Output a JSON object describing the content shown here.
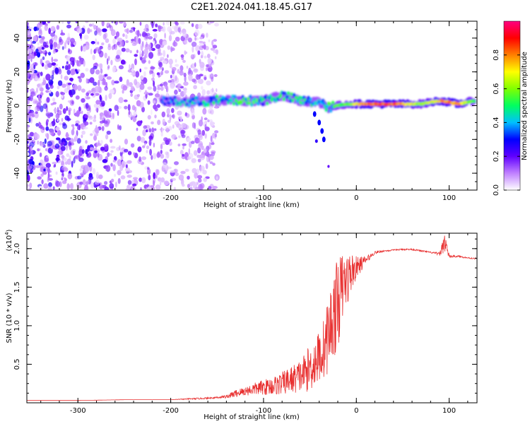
{
  "title": "C2E1.2024.041.18.45.G17",
  "chart_data": [
    {
      "type": "heatmap",
      "xlabel": "Height of straight line (km)",
      "ylabel": "Frequency (Hz)",
      "xlim": [
        -355,
        130
      ],
      "ylim": [
        -50,
        50
      ],
      "x_ticks": [
        -300,
        -200,
        -100,
        0,
        100
      ],
      "y_ticks": [
        -40,
        -20,
        0,
        20,
        40
      ],
      "colorbar": {
        "label": "Normalized spectral amplitude",
        "range": [
          0,
          1
        ],
        "ticks": [
          0.0,
          0.2,
          0.4,
          0.6,
          0.8
        ],
        "colors": [
          "#ffffff",
          "#c080ff",
          "#6000ff",
          "#0000ff",
          "#00c0ff",
          "#00ff60",
          "#80ff00",
          "#ffff00",
          "#ff8000",
          "#ff0000",
          "#ff0080"
        ]
      },
      "noise_region": {
        "x_range": [
          -355,
          -150
        ],
        "freq_range": [
          -50,
          50
        ],
        "amplitude_range": [
          0.05,
          0.3
        ]
      },
      "signal_band": [
        {
          "x": -210,
          "freq": 3,
          "amplitude": 0.35
        },
        {
          "x": -180,
          "freq": 2,
          "amplitude": 0.4
        },
        {
          "x": -150,
          "freq": 3,
          "amplitude": 0.45
        },
        {
          "x": -120,
          "freq": 3,
          "amplitude": 0.5
        },
        {
          "x": -100,
          "freq": 3,
          "amplitude": 0.5
        },
        {
          "x": -80,
          "freq": 6,
          "amplitude": 0.45
        },
        {
          "x": -60,
          "freq": 3,
          "amplitude": 0.5
        },
        {
          "x": -40,
          "freq": 2,
          "amplitude": 0.45
        },
        {
          "x": -30,
          "freq": -1,
          "amplitude": 0.55
        },
        {
          "x": -10,
          "freq": 1,
          "amplitude": 0.6
        },
        {
          "x": 10,
          "freq": 1,
          "amplitude": 0.85
        },
        {
          "x": 40,
          "freq": 1,
          "amplitude": 0.9
        },
        {
          "x": 70,
          "freq": 1,
          "amplitude": 0.6
        },
        {
          "x": 90,
          "freq": 3,
          "amplitude": 0.8
        },
        {
          "x": 110,
          "freq": 1,
          "amplitude": 0.85
        },
        {
          "x": 128,
          "freq": 3,
          "amplitude": 0.5
        }
      ],
      "branch": [
        {
          "x": -45,
          "freq": -5
        },
        {
          "x": -40,
          "freq": -10
        },
        {
          "x": -37,
          "freq": -15
        },
        {
          "x": -35,
          "freq": -20
        }
      ]
    },
    {
      "type": "line",
      "xlabel": "Height of straight line (km)",
      "ylabel": "SNR (10 * v/v)",
      "y_multiplier": "(x10",
      "y_multiplier_exp": "4",
      "y_multiplier_close": ")",
      "xlim": [
        -355,
        130
      ],
      "ylim": [
        0,
        2.2
      ],
      "x_ticks": [
        -300,
        -200,
        -100,
        0,
        100
      ],
      "y_ticks": [
        0.5,
        1.0,
        1.5,
        2.0
      ],
      "y_tick_labels": [
        "0.5",
        "1.0",
        "1.5",
        "2.0"
      ],
      "color": "#e83030",
      "x": [
        -355,
        -300,
        -250,
        -200,
        -180,
        -160,
        -140,
        -130,
        -120,
        -110,
        -100,
        -90,
        -80,
        -70,
        -60,
        -50,
        -40,
        -35,
        -30,
        -25,
        -20,
        -15,
        -10,
        -5,
        0,
        10,
        20,
        30,
        40,
        50,
        60,
        70,
        80,
        90,
        95,
        100,
        110,
        120,
        130
      ],
      "y": [
        0.03,
        0.03,
        0.04,
        0.04,
        0.05,
        0.06,
        0.08,
        0.12,
        0.15,
        0.18,
        0.2,
        0.22,
        0.25,
        0.3,
        0.35,
        0.45,
        0.6,
        0.7,
        0.9,
        1.1,
        1.3,
        1.5,
        1.6,
        1.7,
        1.75,
        1.85,
        1.95,
        1.97,
        1.98,
        1.99,
        1.99,
        1.97,
        1.95,
        1.93,
        2.1,
        1.9,
        1.9,
        1.88,
        1.87
      ],
      "noise_amplitude": [
        0,
        0,
        0,
        0,
        0.01,
        0.01,
        0.02,
        0.05,
        0.06,
        0.08,
        0.1,
        0.12,
        0.15,
        0.18,
        0.22,
        0.3,
        0.35,
        0.4,
        0.5,
        0.55,
        0.6,
        0.45,
        0.35,
        0.25,
        0.15,
        0.05,
        0.02,
        0.01,
        0.01,
        0.01,
        0.01,
        0.01,
        0.01,
        0.02,
        0.15,
        0.02,
        0.01,
        0.01,
        0.01
      ]
    }
  ]
}
